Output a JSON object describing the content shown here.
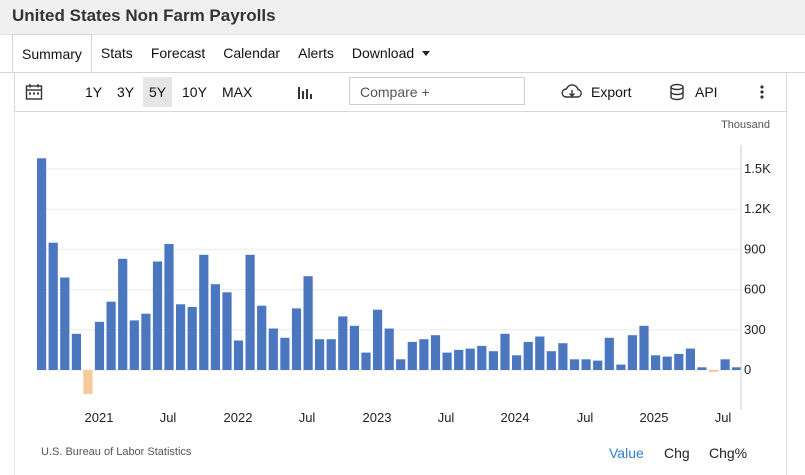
{
  "page_title": "United States Non Farm Payrolls",
  "tabs": [
    {
      "label": "Summary"
    },
    {
      "label": "Stats"
    },
    {
      "label": "Forecast"
    },
    {
      "label": "Calendar"
    },
    {
      "label": "Alerts"
    },
    {
      "label": "Download"
    }
  ],
  "toolbar": {
    "ranges": [
      "1Y",
      "3Y",
      "5Y",
      "10Y",
      "MAX"
    ],
    "active_range": "5Y",
    "compare_placeholder": "Compare +",
    "export_label": "Export",
    "api_label": "API"
  },
  "unit_label": "Thousand",
  "source": "U.S. Bureau of Labor Statistics",
  "modes": [
    "Value",
    "Chg",
    "Chg%"
  ],
  "active_mode": "Value",
  "colors": {
    "positive": "#4a77bf",
    "negative": "#f7ca9c",
    "active_mode": "#2f7fd0",
    "grid": "#ececec"
  },
  "chart_data": {
    "type": "bar",
    "x_ticks": [
      "2021",
      "Jul",
      "2022",
      "Jul",
      "2023",
      "Jul",
      "2024",
      "Jul",
      "2025",
      "Jul"
    ],
    "y_ticks": [
      "1.5K",
      "1.2K",
      "900",
      "600",
      "300",
      "0"
    ],
    "ylim": [
      -210,
      1600
    ],
    "values": [
      1580,
      950,
      690,
      270,
      -180,
      360,
      510,
      830,
      370,
      420,
      810,
      940,
      490,
      470,
      860,
      640,
      580,
      220,
      860,
      480,
      310,
      240,
      460,
      700,
      230,
      230,
      400,
      330,
      130,
      450,
      310,
      80,
      210,
      230,
      260,
      130,
      150,
      160,
      180,
      140,
      270,
      110,
      210,
      250,
      140,
      200,
      80,
      80,
      70,
      240,
      40,
      260,
      330,
      110,
      100,
      120,
      160,
      20,
      -15,
      80,
      20
    ]
  }
}
